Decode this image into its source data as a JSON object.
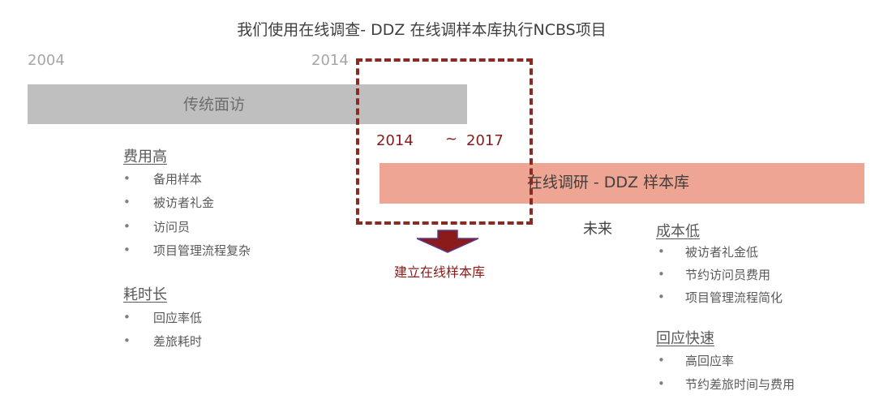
{
  "title": "我们使用在线调查- DDZ 在线调样本库执行NCBS项目",
  "timeline": {
    "year_start": "2004",
    "year_switch": "2014",
    "traditional_label": "传统面访",
    "online_label": "在线调研 - DDZ 样本库",
    "range_start": "2014",
    "range_sep": "~",
    "range_end": "2017",
    "arrow_label": "建立在线样本库",
    "future_label": "未来"
  },
  "bullet_glyph": "•",
  "left": {
    "groups": [
      {
        "heading": "费用高",
        "items": [
          "备用样本",
          "被访者礼金",
          "访问员",
          "项目管理流程复杂"
        ]
      },
      {
        "heading": "耗时长",
        "items": [
          "回应率低",
          "差旅耗时"
        ]
      }
    ]
  },
  "right": {
    "groups": [
      {
        "heading": "成本低",
        "items": [
          "被访者礼金低",
          "节约访问员费用",
          "项目管理流程简化"
        ]
      },
      {
        "heading": "回应快速",
        "items": [
          "高回应率",
          "节约差旅时间与费用"
        ]
      }
    ]
  },
  "colors": {
    "traditional_bar": "#bfbfbf",
    "online_bar": "#eea593",
    "dashed_border": "#8b2a22",
    "accent_text": "#8b1a1a",
    "arrow_fill": "#8b1a1a",
    "arrow_outline": "#5b3a8a"
  },
  "icons": {
    "arrow": "down-arrow-icon"
  }
}
